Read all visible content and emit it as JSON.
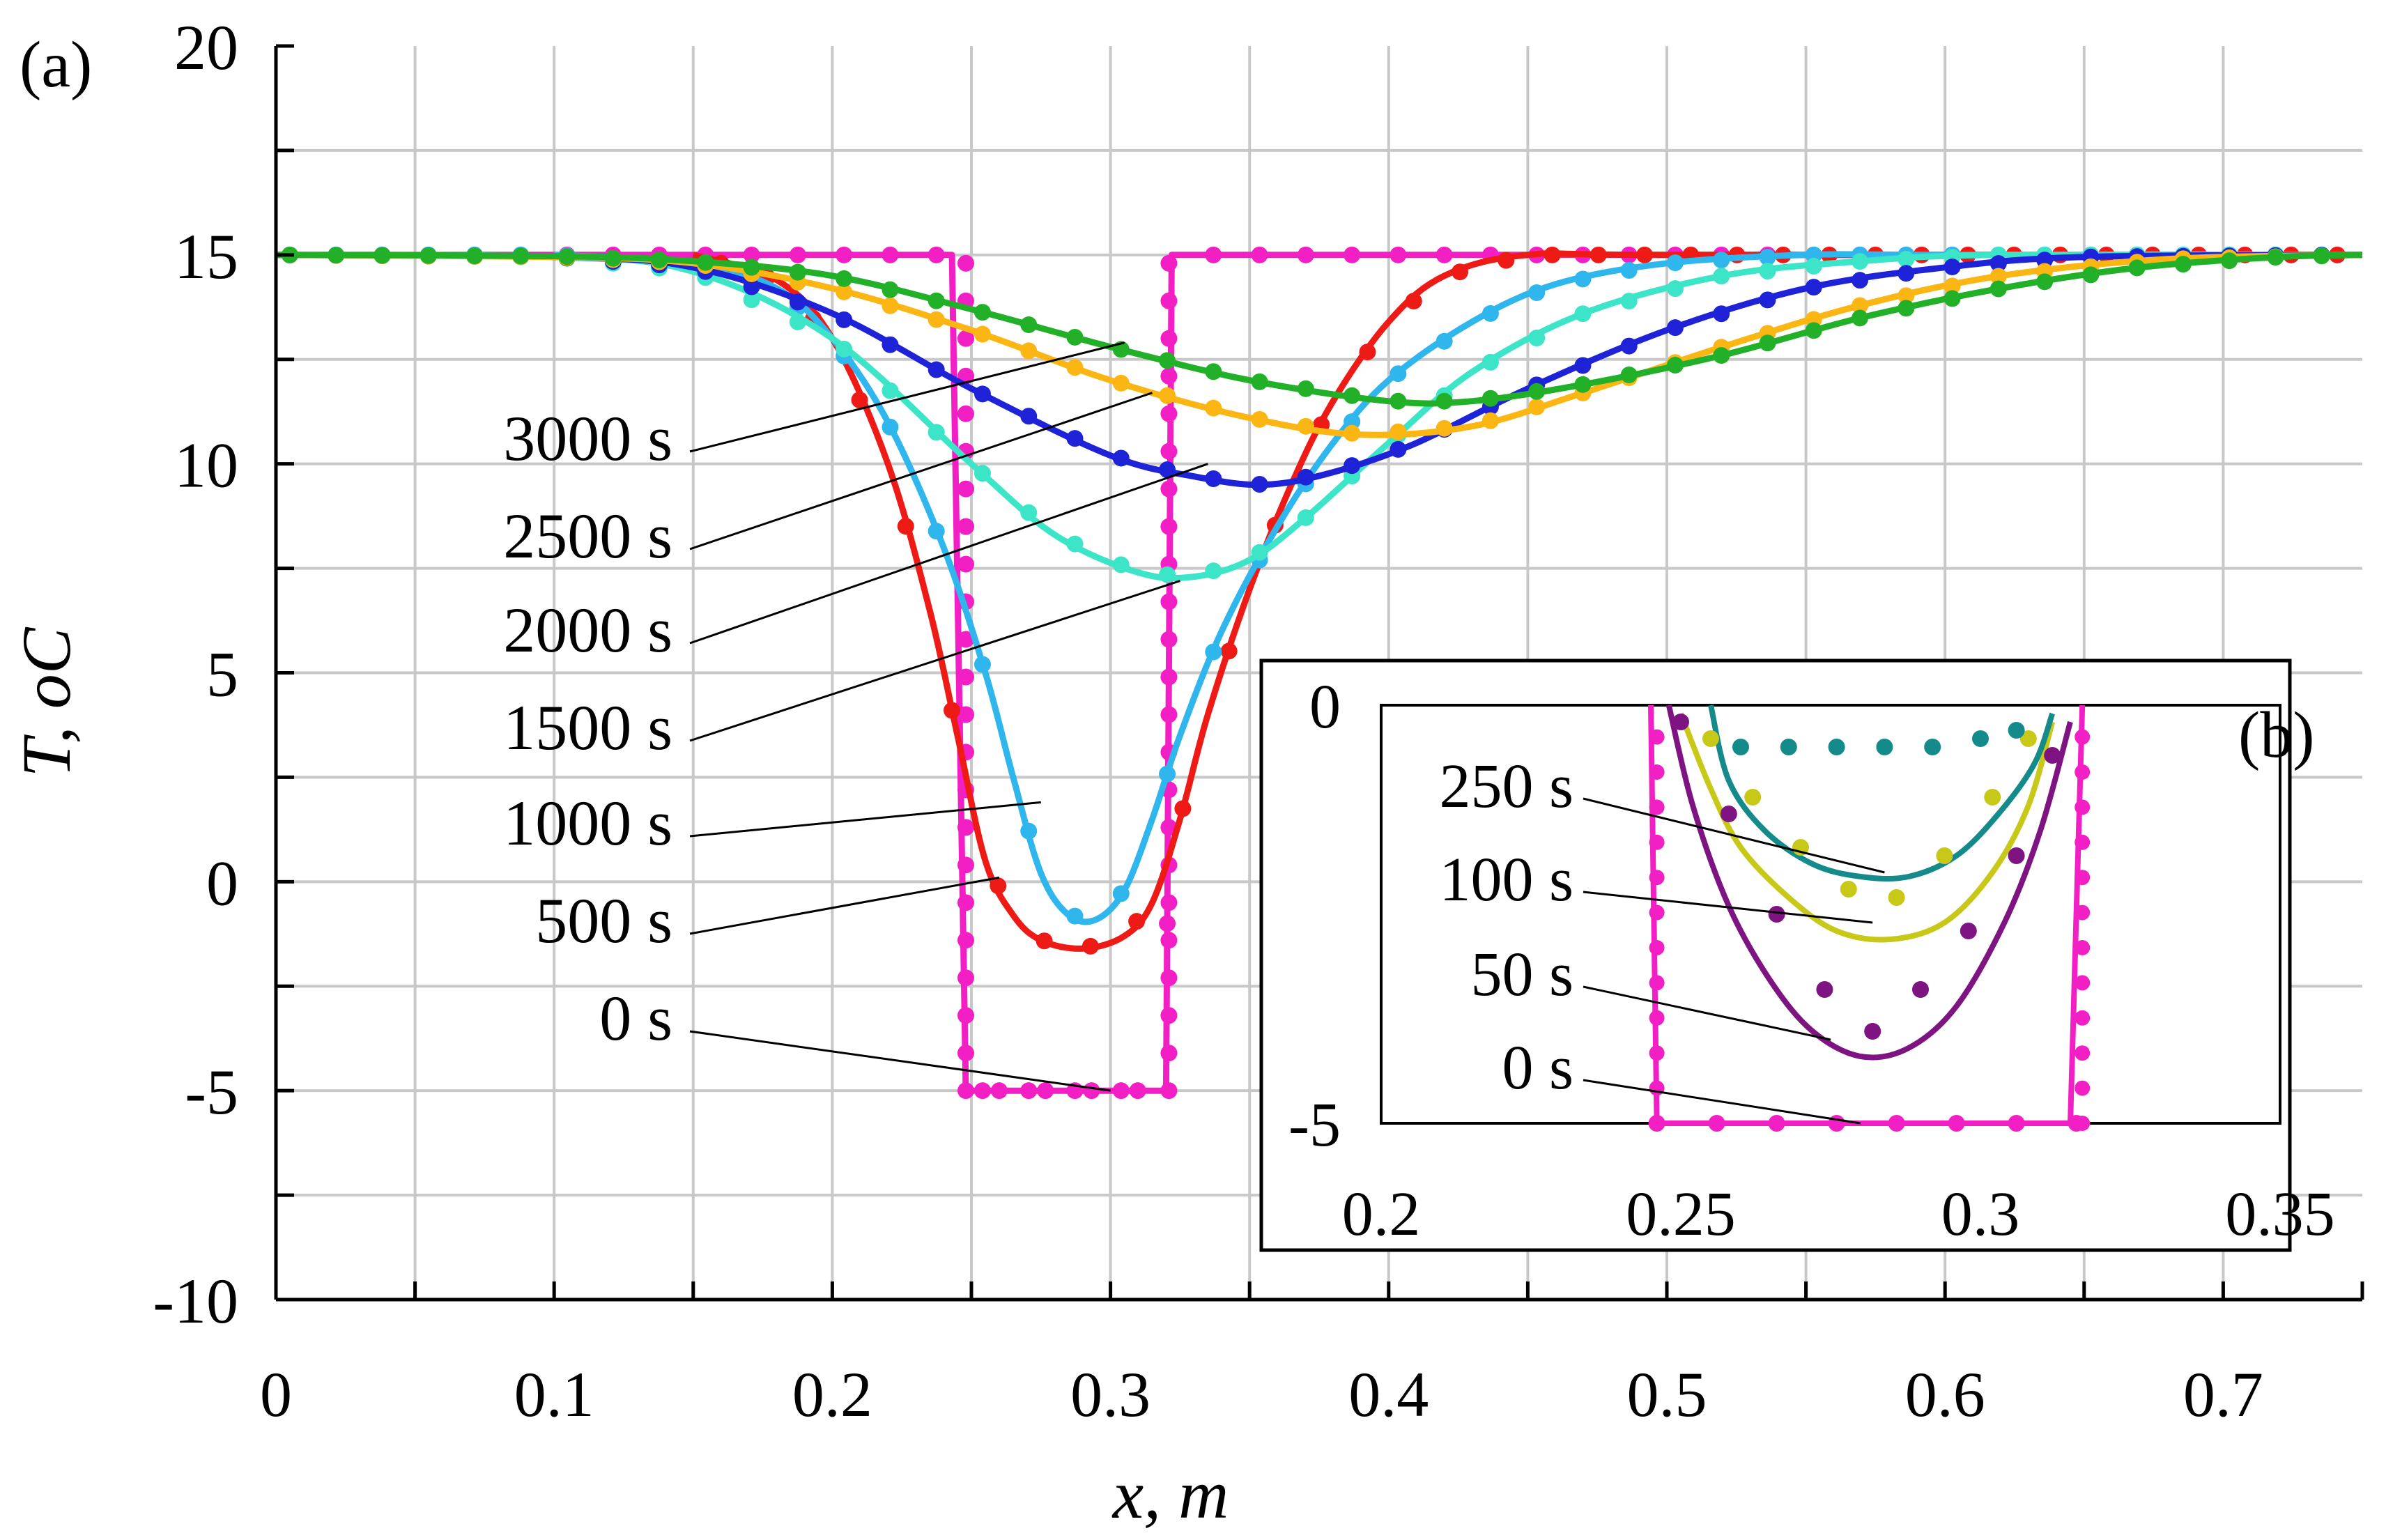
{
  "colors": {
    "t0": "#f21fc4",
    "t50": "#7e1482",
    "t100": "#c8c819",
    "t250": "#148a8a",
    "t500": "#ee1a16",
    "t1000": "#2fb6ec",
    "t1500": "#3ce4c8",
    "t2000": "#1e23d8",
    "t2500": "#fbb614",
    "t3000": "#22b028",
    "grid": "#c8c8c8"
  },
  "chart_data": [
    {
      "id": "a",
      "type": "line",
      "panel_label": "(a)",
      "title": "",
      "xlabel": "x, m",
      "ylabel": "T, oC",
      "xlim": [
        0,
        0.75
      ],
      "ylim": [
        -10,
        20
      ],
      "xticks": [
        0,
        0.1,
        0.2,
        0.3,
        0.4,
        0.5,
        0.6,
        0.7
      ],
      "xtick_labels": [
        "0",
        "0.1",
        "0.2",
        "0.3",
        "0.4",
        "0.5",
        "0.6",
        "0.7"
      ],
      "yticks": [
        -10,
        -5,
        0,
        5,
        10,
        15,
        20
      ],
      "ytick_labels": [
        "-10",
        "-5",
        "0",
        "5",
        "10",
        "15",
        "20"
      ],
      "grid": true,
      "series": [
        {
          "name": "0 s",
          "label": "0 s",
          "color_key": "t0",
          "x": [
            0,
            0.243,
            0.248,
            0.32,
            0.322,
            0.75
          ],
          "y": [
            15,
            15,
            -5,
            -5,
            15,
            15
          ]
        },
        {
          "name": "500 s",
          "label": "500 s",
          "color_key": "t500",
          "x": [
            0.15,
            0.18,
            0.2,
            0.22,
            0.235,
            0.245,
            0.255,
            0.265,
            0.275,
            0.29,
            0.305,
            0.315,
            0.325,
            0.335,
            0.35,
            0.365,
            0.38,
            0.4,
            0.42,
            0.45,
            0.5,
            0.75
          ],
          "y": [
            15,
            14.4,
            13,
            10,
            6.5,
            3.5,
            0.5,
            -0.8,
            -1.4,
            -1.6,
            -1.3,
            -0.5,
            1.5,
            4,
            7,
            9.5,
            11.5,
            13.4,
            14.5,
            15,
            15,
            15
          ]
        },
        {
          "name": "1000 s",
          "label": "1000 s",
          "color_key": "t1000",
          "x": [
            0.1,
            0.15,
            0.18,
            0.2,
            0.22,
            0.24,
            0.255,
            0.265,
            0.275,
            0.285,
            0.295,
            0.305,
            0.315,
            0.325,
            0.34,
            0.36,
            0.38,
            0.4,
            0.43,
            0.46,
            0.5,
            0.55,
            0.6,
            0.75
          ],
          "y": [
            15,
            14.8,
            14.2,
            13,
            11,
            8,
            5,
            2.5,
            0.2,
            -0.8,
            -0.9,
            -0.2,
            1.5,
            3.5,
            6,
            8.5,
            10.5,
            12,
            13.4,
            14.3,
            14.8,
            15,
            15,
            15
          ]
        },
        {
          "name": "1500 s",
          "label": "1500 s",
          "color_key": "t1500",
          "x": [
            0,
            0.1,
            0.15,
            0.2,
            0.25,
            0.28,
            0.31,
            0.33,
            0.35,
            0.37,
            0.4,
            0.43,
            0.47,
            0.52,
            0.57,
            0.62,
            0.75
          ],
          "y": [
            15,
            14.95,
            14.6,
            13,
            10,
            8.3,
            7.4,
            7.3,
            7.7,
            8.7,
            10.5,
            12.2,
            13.6,
            14.5,
            14.85,
            15,
            15
          ]
        },
        {
          "name": "2000 s",
          "label": "2000 s",
          "color_key": "t2000",
          "x": [
            0,
            0.1,
            0.15,
            0.2,
            0.25,
            0.3,
            0.33,
            0.355,
            0.38,
            0.41,
            0.45,
            0.5,
            0.55,
            0.6,
            0.65,
            0.75
          ],
          "y": [
            15,
            14.95,
            14.7,
            13.6,
            11.8,
            10.2,
            9.7,
            9.5,
            9.8,
            10.5,
            11.8,
            13.2,
            14.2,
            14.7,
            14.95,
            15
          ]
        },
        {
          "name": "2500 s",
          "label": "2500 s",
          "color_key": "t2500",
          "x": [
            0,
            0.1,
            0.15,
            0.2,
            0.25,
            0.3,
            0.35,
            0.39,
            0.43,
            0.47,
            0.52,
            0.57,
            0.62,
            0.68,
            0.75
          ],
          "y": [
            15,
            14.95,
            14.8,
            14.2,
            13.2,
            12,
            11.1,
            10.7,
            10.9,
            11.7,
            12.8,
            13.8,
            14.5,
            14.9,
            15
          ]
        },
        {
          "name": "3000 s",
          "label": "3000 s",
          "color_key": "t3000",
          "x": [
            0,
            0.1,
            0.15,
            0.2,
            0.25,
            0.3,
            0.35,
            0.4,
            0.43,
            0.47,
            0.52,
            0.57,
            0.62,
            0.67,
            0.72,
            0.75
          ],
          "y": [
            15,
            14.97,
            14.85,
            14.5,
            13.7,
            12.8,
            12,
            11.5,
            11.5,
            11.9,
            12.6,
            13.5,
            14.2,
            14.7,
            14.95,
            15
          ]
        }
      ]
    },
    {
      "id": "b",
      "type": "line",
      "panel_label": "(b)",
      "title": "",
      "xlabel": "",
      "ylabel": "",
      "xlim": [
        0.2,
        0.35
      ],
      "ylim": [
        -5,
        0
      ],
      "xticks": [
        0.2,
        0.25,
        0.3,
        0.35
      ],
      "xtick_labels": [
        "0.2",
        "0.25",
        "0.3",
        "0.35"
      ],
      "yticks": [
        -5,
        0
      ],
      "ytick_labels": [
        "-5",
        "0"
      ],
      "grid": false,
      "series": [
        {
          "name": "0 s",
          "label": "0 s",
          "color_key": "t0",
          "x": [
            0.245,
            0.246,
            0.315,
            0.317
          ],
          "y": [
            0,
            -5,
            -5,
            0
          ]
        },
        {
          "name": "50 s",
          "label": "50 s",
          "color_key": "t50",
          "x": [
            0.248,
            0.252,
            0.258,
            0.265,
            0.272,
            0.28,
            0.288,
            0.296,
            0.304,
            0.31,
            0.315
          ],
          "y": [
            0,
            -1.2,
            -2.4,
            -3.3,
            -3.9,
            -4.2,
            -4.1,
            -3.6,
            -2.6,
            -1.5,
            -0.2
          ]
        },
        {
          "name": "100 s",
          "label": "100 s",
          "color_key": "t100",
          "x": [
            0.25,
            0.255,
            0.26,
            0.268,
            0.276,
            0.285,
            0.294,
            0.302,
            0.308,
            0.312
          ],
          "y": [
            -0.1,
            -1,
            -1.7,
            -2.3,
            -2.7,
            -2.8,
            -2.6,
            -2,
            -1.2,
            -0.2
          ]
        },
        {
          "name": "250 s",
          "label": "250 s",
          "color_key": "t250",
          "x": [
            0.255,
            0.258,
            0.264,
            0.272,
            0.28,
            0.288,
            0.296,
            0.303,
            0.309,
            0.312
          ],
          "y": [
            0,
            -0.9,
            -1.5,
            -1.9,
            -2.05,
            -2.05,
            -1.8,
            -1.3,
            -0.7,
            -0.1
          ]
        }
      ],
      "markers": [
        {
          "name": "0 s",
          "color_key": "t0",
          "x": [
            0.246,
            0.256,
            0.266,
            0.276,
            0.286,
            0.296,
            0.306,
            0.316
          ],
          "y": [
            -5,
            -5,
            -5,
            -5,
            -5,
            -5,
            -5,
            -5
          ]
        },
        {
          "name": "50 s",
          "color_key": "t50",
          "x": [
            0.25,
            0.258,
            0.266,
            0.274,
            0.282,
            0.29,
            0.298,
            0.306,
            0.312
          ],
          "y": [
            -0.2,
            -1.3,
            -2.5,
            -3.4,
            -3.9,
            -3.4,
            -2.7,
            -1.8,
            -0.6
          ]
        },
        {
          "name": "100 s",
          "color_key": "t100",
          "x": [
            0.255,
            0.262,
            0.27,
            0.278,
            0.286,
            0.294,
            0.302,
            0.308
          ],
          "y": [
            -0.4,
            -1.1,
            -1.7,
            -2.2,
            -2.3,
            -1.8,
            -1.1,
            -0.4
          ]
        },
        {
          "name": "250 s",
          "color_key": "t250",
          "x": [
            0.26,
            0.268,
            0.276,
            0.284,
            0.292,
            0.3,
            0.306
          ],
          "y": [
            -0.5,
            -0.5,
            -0.5,
            -0.5,
            -0.5,
            -0.4,
            -0.3
          ]
        }
      ]
    }
  ]
}
